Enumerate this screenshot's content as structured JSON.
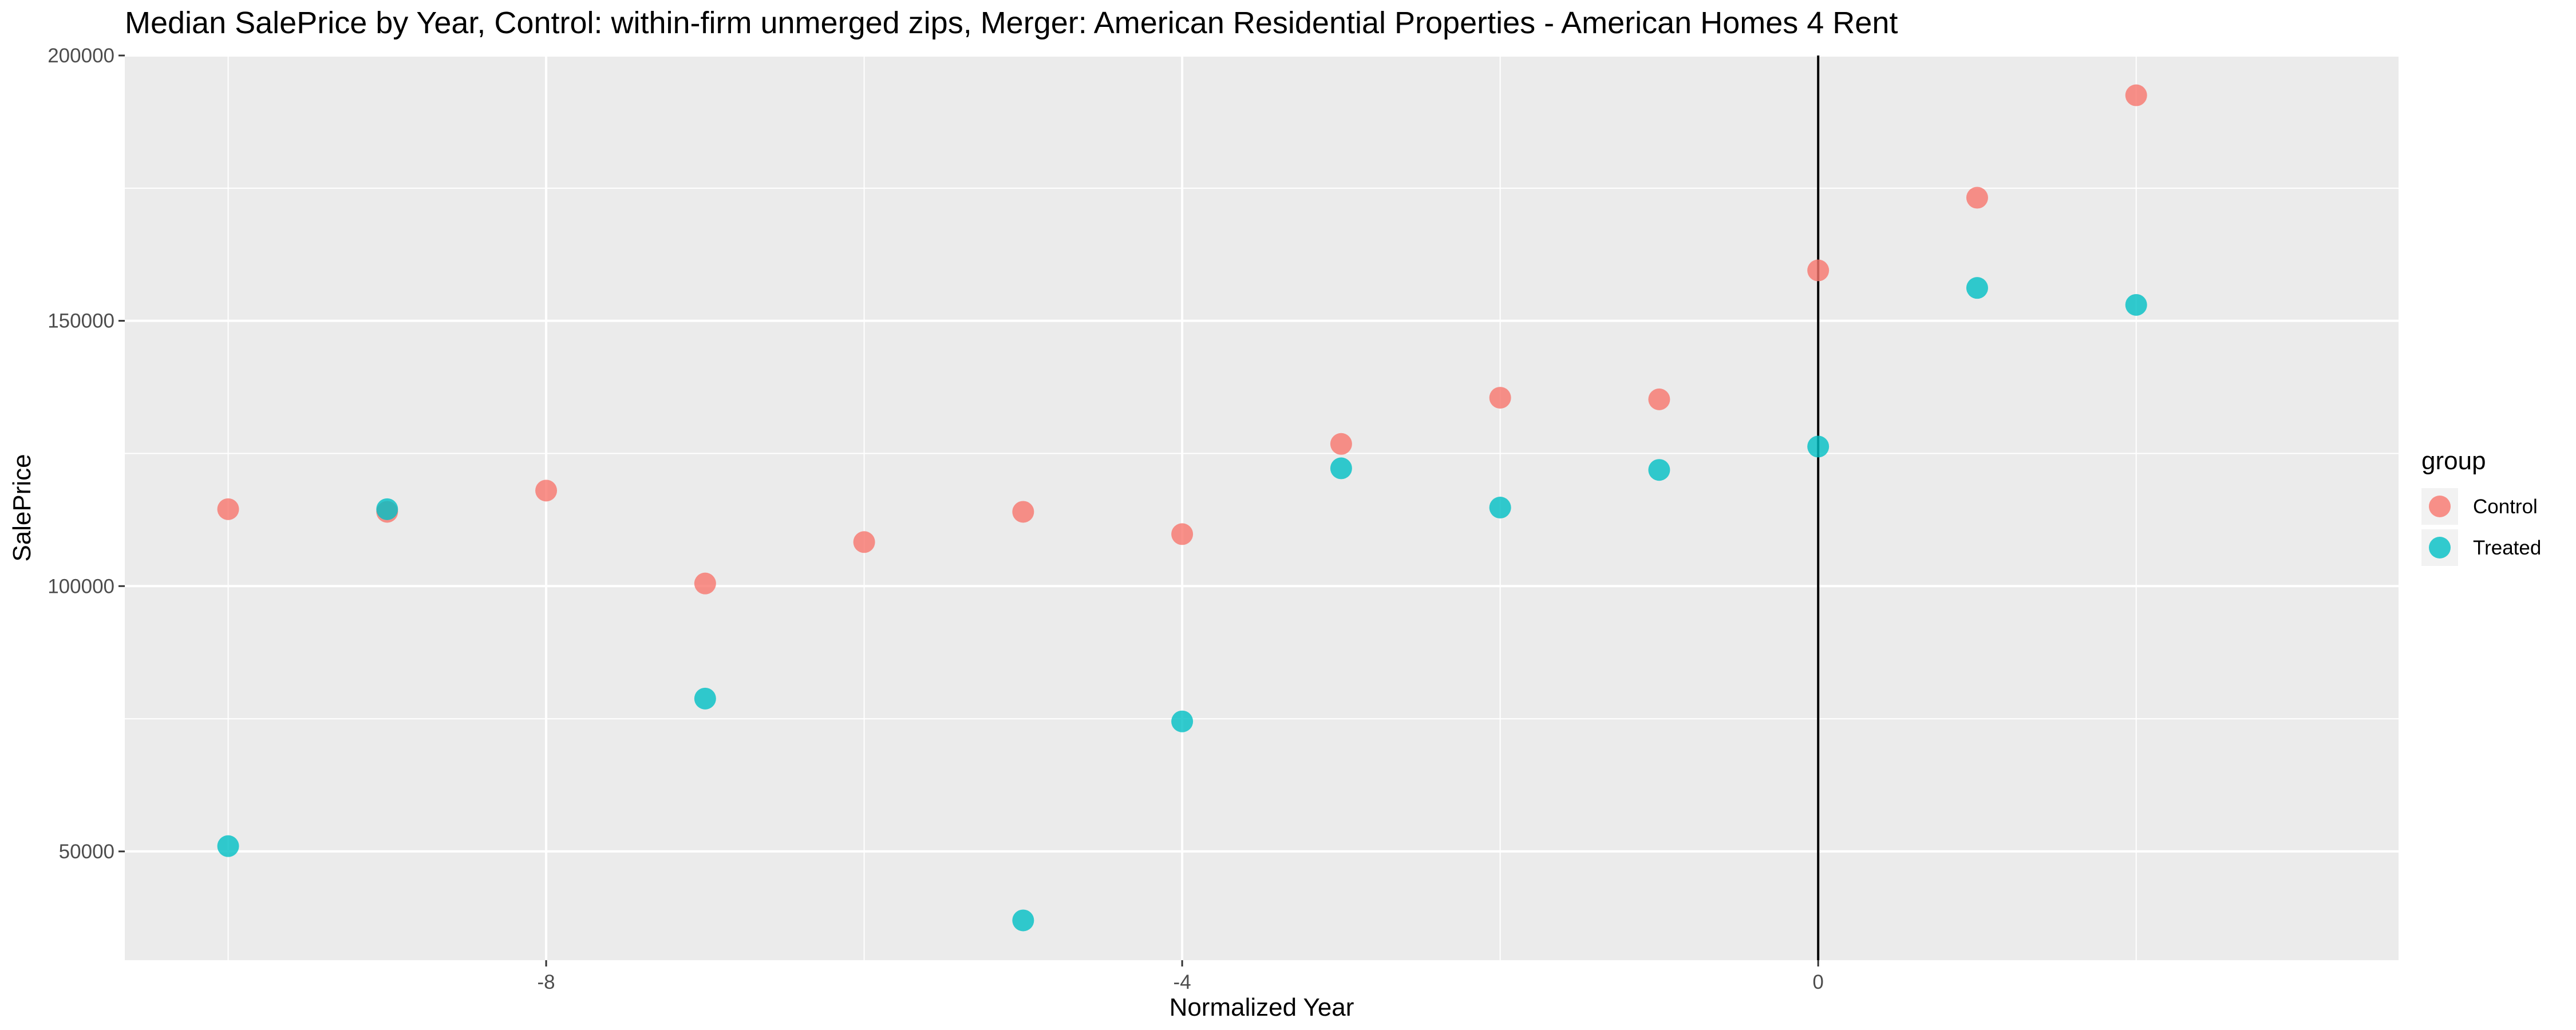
{
  "chart_data": {
    "type": "scatter",
    "title": "Median SalePrice by Year, Control: within-firm unmerged zips, Merger: American Residential Properties - American Homes 4 Rent",
    "xlabel": "Normalized Year",
    "ylabel": "SalePrice",
    "xlim": [
      -10.65,
      3.65
    ],
    "ylim": [
      29500,
      200000
    ],
    "x_ticks": [
      -8,
      -4,
      0
    ],
    "x_tick_labels": [
      "-8",
      "-4",
      "0"
    ],
    "y_ticks": [
      50000,
      100000,
      150000,
      200000
    ],
    "y_tick_labels": [
      "50000",
      "100000",
      "150000",
      "200000"
    ],
    "grid": true,
    "vline_x": 0,
    "legend": {
      "title": "group",
      "position": "right"
    },
    "series": [
      {
        "name": "Control",
        "color": "#F8766D",
        "x": [
          -10,
          -9,
          -8,
          -7,
          -6,
          -5,
          -4,
          -3,
          -2,
          -1,
          0,
          1,
          2
        ],
        "y": [
          114500,
          114000,
          118000,
          100500,
          108300,
          114000,
          109800,
          126800,
          135500,
          135200,
          159500,
          173200,
          192500
        ]
      },
      {
        "name": "Treated",
        "color": "#00BFC4",
        "x": [
          -10,
          -9,
          -7,
          -5,
          -4,
          -3,
          -2,
          -1,
          0,
          1,
          2
        ],
        "y": [
          51000,
          114500,
          78800,
          37000,
          74500,
          122200,
          114800,
          121900,
          126300,
          156200,
          153000
        ]
      }
    ]
  }
}
